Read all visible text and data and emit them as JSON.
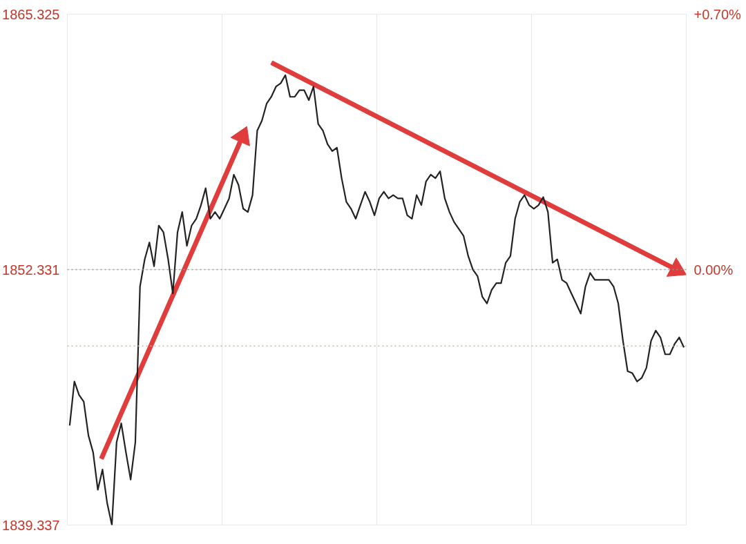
{
  "chart_data": {
    "type": "line",
    "categories": [
      null,
      null,
      null,
      null,
      null,
      null,
      null,
      null,
      null,
      null,
      null,
      null,
      null,
      null,
      null,
      null,
      null,
      null,
      null,
      null,
      null,
      null,
      null,
      null,
      null,
      null,
      null,
      null,
      null,
      null,
      null,
      null,
      null,
      null,
      null,
      null,
      null,
      null,
      null,
      null,
      null,
      null,
      null,
      null,
      null,
      null,
      null,
      null,
      null,
      null,
      null,
      null,
      null,
      null,
      null,
      null,
      null,
      null,
      null,
      null,
      null,
      null,
      null,
      null,
      null,
      null,
      null,
      null,
      null,
      null,
      null,
      null,
      null,
      null,
      null,
      null,
      null,
      null,
      null,
      null,
      null,
      null,
      null,
      null,
      null,
      null,
      null,
      null,
      null,
      null,
      null,
      null,
      null,
      null,
      null,
      null,
      null,
      null,
      null,
      null,
      null,
      null,
      null,
      null,
      null,
      null,
      null,
      null,
      null,
      null,
      null,
      null,
      null,
      null,
      null,
      null,
      null,
      null,
      null,
      null,
      null,
      null,
      null,
      null,
      null,
      null,
      null,
      null,
      null,
      null,
      null,
      null
    ],
    "series": [
      {
        "color": "#222222",
        "values": [
          1844.4,
          1846.64,
          1845.95,
          1845.61,
          1843.89,
          1843.03,
          1841.13,
          1842.16,
          1840.44,
          1839.34,
          1843.54,
          1844.51,
          1843.03,
          1841.65,
          1843.54,
          1851.47,
          1852.85,
          1853.71,
          1852.5,
          1854.57,
          1854.23,
          1852.85,
          1851.12,
          1854.23,
          1855.26,
          1853.54,
          1854.57,
          1854.92,
          1855.61,
          1856.47,
          1854.92,
          1855.26,
          1854.92,
          1855.43,
          1855.95,
          1857.16,
          1856.64,
          1855.43,
          1855.26,
          1856.12,
          1859.4,
          1859.91,
          1860.77,
          1861.12,
          1861.64,
          1861.81,
          1862.22,
          1861.12,
          1861.12,
          1861.46,
          1861.46,
          1860.95,
          1861.64,
          1859.74,
          1859.4,
          1858.71,
          1858.36,
          1858.53,
          1856.98,
          1855.78,
          1855.43,
          1854.92,
          1855.61,
          1856.29,
          1855.78,
          1855.09,
          1855.95,
          1856.29,
          1855.95,
          1856.12,
          1855.95,
          1855.95,
          1855.09,
          1854.92,
          1856.12,
          1855.61,
          1856.81,
          1857.16,
          1856.98,
          1857.33,
          1855.95,
          1855.26,
          1854.74,
          1854.4,
          1854.05,
          1853.02,
          1852.33,
          1851.99,
          1850.95,
          1850.61,
          1851.3,
          1851.64,
          1851.64,
          1852.68,
          1853.02,
          1854.92,
          1855.78,
          1856.12,
          1855.61,
          1855.43,
          1855.61,
          1856.02,
          1855.26,
          1852.68,
          1852.85,
          1851.81,
          1851.64,
          1851.12,
          1850.61,
          1850.09,
          1851.47,
          1852.16,
          1851.81,
          1851.81,
          1851.81,
          1851.81,
          1851.47,
          1850.61,
          1848.71,
          1847.16,
          1847.06,
          1846.64,
          1846.82,
          1847.33,
          1848.71,
          1849.23,
          1848.88,
          1848.02,
          1848.02,
          1848.54,
          1848.88,
          1848.37
        ]
      }
    ],
    "ylim": [
      1839.337,
      1865.325
    ],
    "yticks": [
      1839.337,
      1852.331,
      1865.325
    ],
    "y2lim": [
      -0.7,
      0.7
    ],
    "y2ticks": [
      {
        "value": 0,
        "label": "0.00%"
      },
      {
        "value": 0.7,
        "label": "+0.70%"
      }
    ],
    "ref_lines": [
      {
        "axis": "y",
        "value": 1852.331,
        "color": "#999999",
        "line_style": "dotted"
      },
      {
        "axis": "y",
        "value": 1848.44,
        "color": "#c8c070",
        "line_style": "dotted"
      }
    ],
    "tick_labels": "y",
    "grid": true,
    "line_style": "solid"
  }
}
